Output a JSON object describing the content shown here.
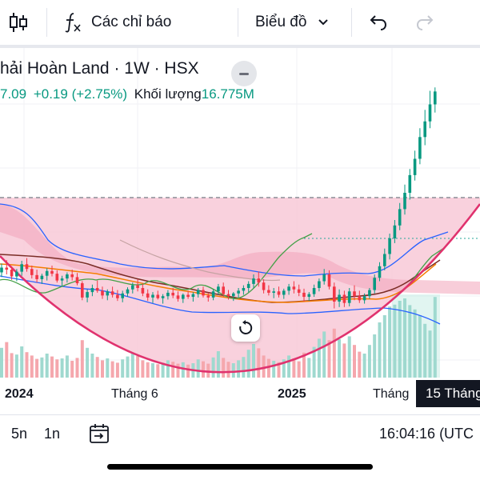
{
  "toolbar": {
    "chart_type_icon": "candlestick-icon",
    "indicators_icon": "function-fx-icon",
    "indicators_label": "Các chỉ báo",
    "layout_label": "Biểu đồ",
    "layout_chevron_icon": "chevron-down-icon",
    "undo_icon": "undo-icon",
    "redo_icon": "redo-icon"
  },
  "legend": {
    "title": "hải Hoàn Land · 1W · HSX",
    "price": "7.09",
    "change": "+0.19 (+2.75%)",
    "volume_label": "Khối lượng",
    "volume_value": "16.775M"
  },
  "xaxis": {
    "labels": [
      "2024",
      "Tháng 6",
      "2025",
      "Tháng"
    ],
    "crosshair_date": "15 Tháng"
  },
  "bottom_bar": {
    "range_5y": "5n",
    "range_1y": "1n",
    "goto_icon": "go-to-date-icon",
    "clock": "16:04:16 (UTC"
  },
  "colors": {
    "up": "#089981",
    "down": "#f23645",
    "shading": "#f8c6d4",
    "curve": "#e0326e",
    "text": "#131722"
  },
  "chart_data": {
    "type": "candlestick",
    "timeframe": "1W",
    "candles": [
      [
        4.43,
        4.56,
        4.36,
        4.5
      ],
      [
        4.5,
        4.61,
        4.4,
        4.47
      ],
      [
        4.47,
        4.52,
        4.32,
        4.37
      ],
      [
        4.37,
        4.48,
        4.3,
        4.44
      ],
      [
        4.44,
        4.6,
        4.38,
        4.55
      ],
      [
        4.55,
        4.64,
        4.44,
        4.48
      ],
      [
        4.48,
        4.53,
        4.34,
        4.39
      ],
      [
        4.39,
        4.47,
        4.28,
        4.33
      ],
      [
        4.33,
        4.41,
        4.26,
        4.38
      ],
      [
        4.38,
        4.49,
        4.31,
        4.45
      ],
      [
        4.45,
        4.53,
        4.37,
        4.41
      ],
      [
        4.41,
        4.46,
        4.28,
        4.31
      ],
      [
        4.31,
        4.38,
        4.23,
        4.34
      ],
      [
        4.34,
        4.43,
        4.28,
        4.4
      ],
      [
        4.4,
        4.47,
        4.31,
        4.36
      ],
      [
        4.36,
        4.42,
        4.24,
        4.27
      ],
      [
        4.27,
        4.3,
        4.02,
        4.06
      ],
      [
        4.06,
        4.18,
        3.99,
        4.14
      ],
      [
        4.14,
        4.25,
        4.08,
        4.2
      ],
      [
        4.2,
        4.31,
        4.13,
        4.16
      ],
      [
        4.16,
        4.22,
        4.04,
        4.09
      ],
      [
        4.09,
        4.18,
        4.02,
        4.15
      ],
      [
        4.15,
        4.22,
        4.06,
        4.1
      ],
      [
        4.1,
        4.17,
        4.01,
        4.05
      ],
      [
        4.05,
        4.16,
        3.99,
        4.12
      ],
      [
        4.12,
        4.21,
        4.07,
        4.18
      ],
      [
        4.18,
        4.28,
        4.12,
        4.24
      ],
      [
        4.24,
        4.33,
        4.15,
        4.2
      ],
      [
        4.2,
        4.26,
        4.08,
        4.12
      ],
      [
        4.12,
        4.18,
        4.01,
        4.06
      ],
      [
        4.06,
        4.14,
        3.98,
        4.1
      ],
      [
        4.1,
        4.16,
        4.03,
        4.05
      ],
      [
        4.05,
        4.11,
        3.97,
        4.08
      ],
      [
        4.08,
        4.17,
        4.03,
        4.13
      ],
      [
        4.13,
        4.2,
        4.05,
        4.09
      ],
      [
        4.09,
        4.15,
        4.0,
        4.04
      ],
      [
        4.04,
        4.12,
        3.98,
        4.1
      ],
      [
        4.1,
        4.16,
        4.04,
        4.07
      ],
      [
        4.07,
        4.14,
        4.0,
        4.11
      ],
      [
        4.11,
        4.2,
        4.06,
        4.17
      ],
      [
        4.17,
        4.22,
        4.06,
        4.09
      ],
      [
        4.09,
        4.13,
        4.0,
        4.06
      ],
      [
        4.06,
        4.18,
        4.02,
        4.15
      ],
      [
        4.15,
        4.26,
        4.1,
        4.22
      ],
      [
        4.22,
        4.28,
        4.07,
        4.11
      ],
      [
        4.11,
        4.17,
        4.03,
        4.08
      ],
      [
        4.08,
        4.14,
        4.01,
        4.12
      ],
      [
        4.12,
        4.2,
        4.06,
        4.16
      ],
      [
        4.16,
        4.24,
        4.1,
        4.2
      ],
      [
        4.2,
        4.3,
        4.14,
        4.26
      ],
      [
        4.26,
        4.4,
        4.2,
        4.34
      ],
      [
        4.34,
        4.44,
        4.22,
        4.28
      ],
      [
        4.28,
        4.33,
        4.12,
        4.17
      ],
      [
        4.17,
        4.24,
        4.09,
        4.13
      ],
      [
        4.13,
        4.2,
        4.05,
        4.15
      ],
      [
        4.15,
        4.22,
        4.06,
        4.1
      ],
      [
        4.1,
        4.19,
        4.04,
        4.16
      ],
      [
        4.16,
        4.26,
        4.1,
        4.22
      ],
      [
        4.22,
        4.3,
        4.12,
        4.18
      ],
      [
        4.18,
        4.25,
        4.08,
        4.13
      ],
      [
        4.13,
        4.19,
        4.0,
        4.07
      ],
      [
        4.07,
        4.14,
        4.01,
        4.11
      ],
      [
        4.11,
        4.25,
        4.07,
        4.2
      ],
      [
        4.2,
        4.34,
        4.15,
        4.3
      ],
      [
        4.3,
        4.48,
        4.25,
        4.4
      ],
      [
        4.4,
        4.46,
        4.18,
        4.22
      ],
      [
        4.22,
        4.28,
        3.9,
        4.0
      ],
      [
        4.0,
        4.18,
        3.92,
        4.1
      ],
      [
        4.1,
        4.16,
        3.92,
        3.98
      ],
      [
        3.98,
        4.2,
        3.93,
        4.15
      ],
      [
        4.15,
        4.24,
        4.02,
        4.08
      ],
      [
        4.08,
        4.16,
        3.98,
        4.02
      ],
      [
        4.02,
        4.12,
        3.97,
        4.08
      ],
      [
        4.08,
        4.2,
        4.04,
        4.17
      ],
      [
        4.17,
        4.4,
        4.12,
        4.35
      ],
      [
        4.35,
        4.58,
        4.3,
        4.52
      ],
      [
        4.52,
        4.78,
        4.46,
        4.7
      ],
      [
        4.7,
        5.0,
        4.62,
        4.93
      ],
      [
        4.93,
        5.2,
        4.86,
        5.12
      ],
      [
        5.12,
        5.45,
        5.05,
        5.36
      ],
      [
        5.36,
        5.72,
        5.28,
        5.6
      ],
      [
        5.6,
        5.95,
        5.5,
        5.86
      ],
      [
        5.86,
        6.22,
        5.78,
        6.1
      ],
      [
        6.1,
        6.55,
        6.02,
        6.42
      ],
      [
        6.42,
        6.82,
        6.3,
        6.65
      ],
      [
        6.65,
        7.1,
        6.55,
        6.9
      ],
      [
        6.9,
        7.15,
        6.78,
        7.09
      ]
    ],
    "volume": [
      6.2,
      7.4,
      5.1,
      4.8,
      6.5,
      5.3,
      4.6,
      3.9,
      4.2,
      5.0,
      4.4,
      3.8,
      4.0,
      4.6,
      3.5,
      4.1,
      7.8,
      6.2,
      5.0,
      4.3,
      3.6,
      4.0,
      3.4,
      3.1,
      3.8,
      4.4,
      5.2,
      4.5,
      3.6,
      3.2,
      3.0,
      2.8,
      3.1,
      3.6,
      3.3,
      2.9,
      3.2,
      2.7,
      3.0,
      3.8,
      3.4,
      2.9,
      4.2,
      5.5,
      4.1,
      3.3,
      3.0,
      3.6,
      4.3,
      5.8,
      7.0,
      6.1,
      4.6,
      3.9,
      3.5,
      3.2,
      3.8,
      4.6,
      4.0,
      3.4,
      5.2,
      4.1,
      6.4,
      8.1,
      9.6,
      7.8,
      10.2,
      8.0,
      7.1,
      8.6,
      6.8,
      5.4,
      5.0,
      6.8,
      9.0,
      11.5,
      13.0,
      14.8,
      15.2,
      16.0,
      16.5,
      15.1,
      14.2,
      13.0,
      11.2,
      9.8,
      16.8
    ]
  }
}
